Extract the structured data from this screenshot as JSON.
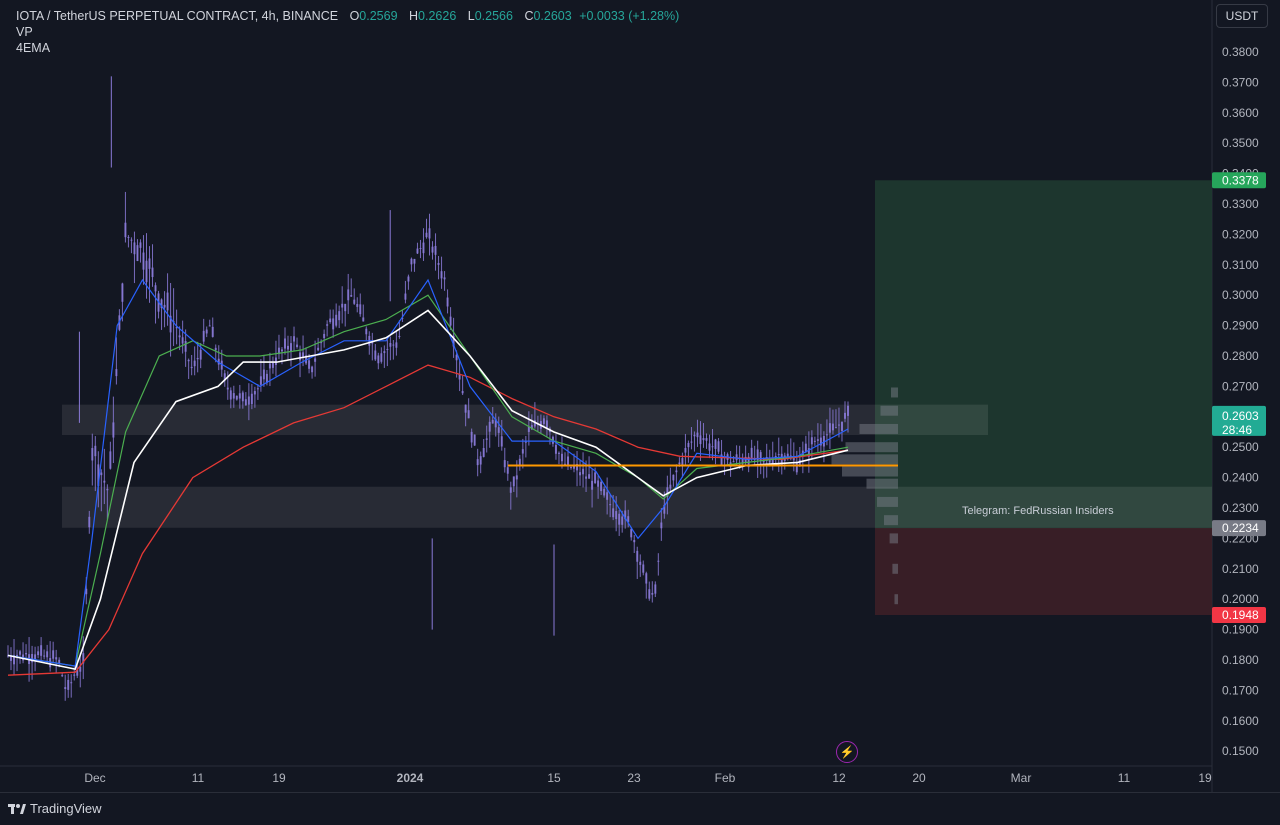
{
  "legend": {
    "symbol": "IOTA / TetherUS PERPETUAL CONTRACT, 4h, BINANCE",
    "open_label": "O",
    "open": "0.2569",
    "high_label": "H",
    "high": "0.2626",
    "low_label": "L",
    "low": "0.2566",
    "close_label": "C",
    "close": "0.2603",
    "change": "+0.0033 (+1.28%)",
    "indicator1": "VP",
    "indicator2": "4EMA"
  },
  "unit_button": "USDT",
  "annotation": "Telegram: FedRussian Insiders",
  "flash_icon": "⚡",
  "footer": {
    "brand": "TradingView"
  },
  "price_tags": {
    "take_profit": "0.3378",
    "current": "0.2603",
    "countdown": "28:46",
    "entry": "0.2234",
    "stop_loss": "0.1948"
  },
  "colors": {
    "background": "#131722",
    "ema_fast": "#2962ff",
    "ema_mid": "#4caf50",
    "ema_slow": "#ffffff",
    "ema_long": "#e53935",
    "poc_line": "#ff9800",
    "candles": "#8a7ad8",
    "take_profit_zone": "#1f3a30",
    "stop_loss_zone": "#3d1f27"
  },
  "chart_data": {
    "type": "candlestick",
    "x_ticks": [
      "Dec",
      "11",
      "19",
      "2024",
      "15",
      "23",
      "Feb",
      "12",
      "20",
      "Mar",
      "11",
      "19"
    ],
    "y_ticks": [
      "0.3800",
      "0.3700",
      "0.3600",
      "0.3500",
      "0.3400",
      "0.3300",
      "0.3200",
      "0.3100",
      "0.3000",
      "0.2900",
      "0.2800",
      "0.2700",
      "0.2600",
      "0.2500",
      "0.2400",
      "0.2300",
      "0.2200",
      "0.2100",
      "0.2000",
      "0.1900",
      "0.1800",
      "0.1700",
      "0.1600",
      "0.1500"
    ],
    "ylim": [
      0.143,
      0.39
    ],
    "price_path": [
      [
        0,
        0.1815
      ],
      [
        0.03,
        0.182
      ],
      [
        0.06,
        0.18
      ],
      [
        0.07,
        0.169
      ],
      [
        0.08,
        0.176
      ],
      [
        0.09,
        0.179
      ],
      [
        0.1,
        0.25
      ],
      [
        0.12,
        0.235
      ],
      [
        0.14,
        0.32
      ],
      [
        0.16,
        0.315
      ],
      [
        0.18,
        0.3
      ],
      [
        0.2,
        0.29
      ],
      [
        0.22,
        0.275
      ],
      [
        0.24,
        0.29
      ],
      [
        0.26,
        0.27
      ],
      [
        0.28,
        0.265
      ],
      [
        0.3,
        0.27
      ],
      [
        0.32,
        0.28
      ],
      [
        0.34,
        0.285
      ],
      [
        0.36,
        0.275
      ],
      [
        0.38,
        0.29
      ],
      [
        0.41,
        0.3
      ],
      [
        0.44,
        0.28
      ],
      [
        0.465,
        0.285
      ],
      [
        0.48,
        0.31
      ],
      [
        0.5,
        0.32
      ],
      [
        0.52,
        0.305
      ],
      [
        0.54,
        0.27
      ],
      [
        0.56,
        0.245
      ],
      [
        0.58,
        0.26
      ],
      [
        0.6,
        0.235
      ],
      [
        0.62,
        0.255
      ],
      [
        0.64,
        0.26
      ],
      [
        0.66,
        0.245
      ],
      [
        0.68,
        0.242
      ],
      [
        0.7,
        0.238
      ],
      [
        0.72,
        0.23
      ],
      [
        0.74,
        0.225
      ],
      [
        0.76,
        0.205
      ],
      [
        0.77,
        0.2
      ],
      [
        0.78,
        0.23
      ],
      [
        0.8,
        0.245
      ],
      [
        0.82,
        0.255
      ],
      [
        0.84,
        0.25
      ],
      [
        0.86,
        0.245
      ],
      [
        0.88,
        0.247
      ],
      [
        0.9,
        0.245
      ],
      [
        0.92,
        0.248
      ],
      [
        0.94,
        0.245
      ],
      [
        0.96,
        0.252
      ],
      [
        0.98,
        0.255
      ],
      [
        1.0,
        0.2603
      ]
    ],
    "ema_fast_path": [
      [
        0,
        0.1815
      ],
      [
        0.08,
        0.178
      ],
      [
        0.1,
        0.22
      ],
      [
        0.13,
        0.29
      ],
      [
        0.16,
        0.305
      ],
      [
        0.2,
        0.29
      ],
      [
        0.25,
        0.278
      ],
      [
        0.3,
        0.27
      ],
      [
        0.35,
        0.278
      ],
      [
        0.4,
        0.285
      ],
      [
        0.45,
        0.285
      ],
      [
        0.5,
        0.305
      ],
      [
        0.55,
        0.27
      ],
      [
        0.6,
        0.252
      ],
      [
        0.65,
        0.252
      ],
      [
        0.7,
        0.242
      ],
      [
        0.75,
        0.22
      ],
      [
        0.78,
        0.23
      ],
      [
        0.82,
        0.248
      ],
      [
        0.88,
        0.246
      ],
      [
        0.94,
        0.247
      ],
      [
        1.0,
        0.256
      ]
    ],
    "ema_mid_path": [
      [
        0,
        0.1815
      ],
      [
        0.08,
        0.178
      ],
      [
        0.11,
        0.215
      ],
      [
        0.14,
        0.255
      ],
      [
        0.18,
        0.28
      ],
      [
        0.22,
        0.285
      ],
      [
        0.26,
        0.28
      ],
      [
        0.3,
        0.28
      ],
      [
        0.35,
        0.282
      ],
      [
        0.4,
        0.288
      ],
      [
        0.45,
        0.292
      ],
      [
        0.5,
        0.3
      ],
      [
        0.55,
        0.28
      ],
      [
        0.6,
        0.26
      ],
      [
        0.65,
        0.252
      ],
      [
        0.7,
        0.248
      ],
      [
        0.75,
        0.24
      ],
      [
        0.78,
        0.233
      ],
      [
        0.82,
        0.243
      ],
      [
        0.88,
        0.245
      ],
      [
        0.94,
        0.247
      ],
      [
        1.0,
        0.25
      ]
    ],
    "ema_slow_path": [
      [
        0,
        0.1815
      ],
      [
        0.08,
        0.177
      ],
      [
        0.11,
        0.2
      ],
      [
        0.15,
        0.245
      ],
      [
        0.2,
        0.265
      ],
      [
        0.25,
        0.27
      ],
      [
        0.28,
        0.278
      ],
      [
        0.32,
        0.278
      ],
      [
        0.36,
        0.28
      ],
      [
        0.4,
        0.282
      ],
      [
        0.45,
        0.286
      ],
      [
        0.5,
        0.295
      ],
      [
        0.55,
        0.28
      ],
      [
        0.6,
        0.262
      ],
      [
        0.65,
        0.255
      ],
      [
        0.7,
        0.25
      ],
      [
        0.75,
        0.24
      ],
      [
        0.78,
        0.234
      ],
      [
        0.82,
        0.24
      ],
      [
        0.88,
        0.244
      ],
      [
        0.94,
        0.245
      ],
      [
        1.0,
        0.249
      ]
    ],
    "ema_long_path": [
      [
        0,
        0.175
      ],
      [
        0.08,
        0.176
      ],
      [
        0.12,
        0.19
      ],
      [
        0.16,
        0.215
      ],
      [
        0.22,
        0.24
      ],
      [
        0.28,
        0.25
      ],
      [
        0.34,
        0.258
      ],
      [
        0.4,
        0.263
      ],
      [
        0.45,
        0.27
      ],
      [
        0.5,
        0.277
      ],
      [
        0.55,
        0.273
      ],
      [
        0.6,
        0.266
      ],
      [
        0.65,
        0.26
      ],
      [
        0.7,
        0.256
      ],
      [
        0.75,
        0.25
      ],
      [
        0.8,
        0.247
      ],
      [
        0.86,
        0.2465
      ],
      [
        0.92,
        0.246
      ],
      [
        1.0,
        0.249
      ]
    ],
    "horizontal_zones": [
      [
        0.254,
        0.264
      ],
      [
        0.2235,
        0.237
      ]
    ],
    "poc_level": 0.244,
    "take_profit_zone": [
      0.244,
      0.3378
    ],
    "stop_loss_zone": [
      0.1948,
      0.2234
    ],
    "volume_profile": [
      [
        0.268,
        0.1
      ],
      [
        0.262,
        0.25
      ],
      [
        0.256,
        0.55
      ],
      [
        0.25,
        0.75
      ],
      [
        0.246,
        0.95
      ],
      [
        0.242,
        0.8
      ],
      [
        0.238,
        0.45
      ],
      [
        0.232,
        0.3
      ],
      [
        0.226,
        0.2
      ],
      [
        0.22,
        0.12
      ],
      [
        0.21,
        0.08
      ],
      [
        0.2,
        0.05
      ]
    ]
  }
}
